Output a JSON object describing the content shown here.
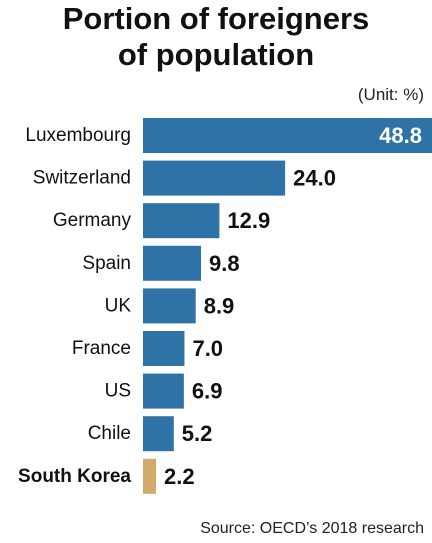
{
  "header": {
    "title_line1": "Portion of foreigners",
    "title_line2": "of population",
    "unit": "(Unit: %)"
  },
  "footer": {
    "source": "Source: OECD’s 2018 research"
  },
  "colors": {
    "bar": "#2e72a6",
    "highlight_bar": "#d4aa6a",
    "text": "#111111",
    "value_on_bar": "#ffffff"
  },
  "chart_data": {
    "type": "bar",
    "orientation": "horizontal",
    "title": "Portion of foreigners of population",
    "unit": "(Unit: %)",
    "categories": [
      "Luxembourg",
      "Switzerland",
      "Germany",
      "Spain",
      "UK",
      "France",
      "US",
      "Chile",
      "South Korea"
    ],
    "values": [
      48.8,
      24.0,
      12.9,
      9.8,
      8.9,
      7.0,
      6.9,
      5.2,
      2.2
    ],
    "value_labels": [
      "48.8",
      "24.0",
      "12.9",
      "9.8",
      "8.9",
      "7.0",
      "6.9",
      "5.2",
      "2.2"
    ],
    "highlight": "South Korea",
    "xlim": [
      0,
      48.8
    ],
    "grid": false,
    "legend": "none"
  }
}
